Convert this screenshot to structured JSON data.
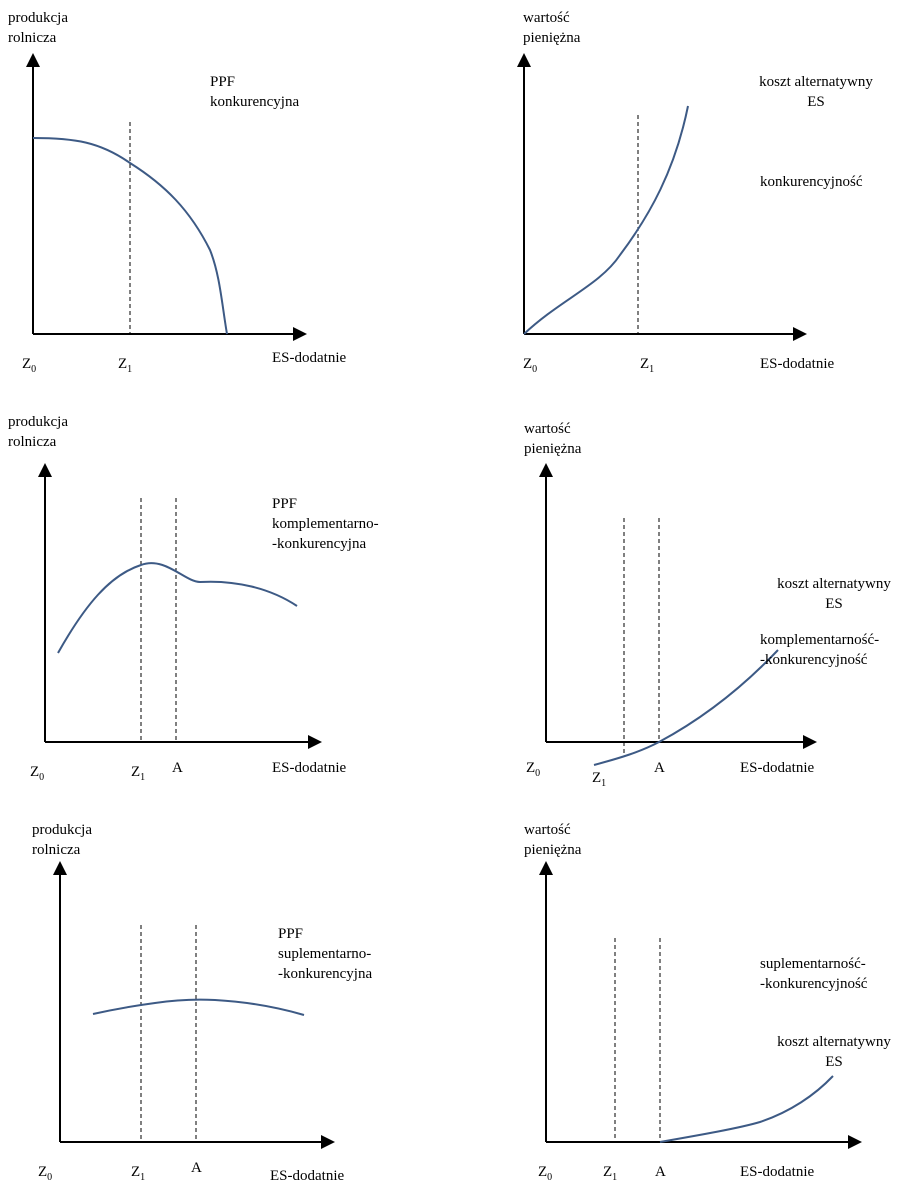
{
  "colors": {
    "curve": "#3d5a85",
    "axis": "#000000"
  },
  "panels": [
    {
      "id": "p1",
      "ylabel1": "produkcja",
      "ylabel2": "rolnicza",
      "xlabel": "ES-dodatnie",
      "label1": "PPF",
      "label2": "konkurencyjna",
      "label3": "",
      "tick_z0": "Z",
      "tick_z0_sub": "0",
      "tick_z1": "Z",
      "tick_z1_sub": "1",
      "tick_a": ""
    },
    {
      "id": "p2",
      "ylabel1": "wartość",
      "ylabel2": "pieniężna",
      "xlabel": "ES-dodatnie",
      "label1": "koszt alternatywny",
      "label2": "ES",
      "label3": "konkurencyjność",
      "label4": "",
      "tick_z0": "Z",
      "tick_z0_sub": "0",
      "tick_z1": "Z",
      "tick_z1_sub": "1",
      "tick_a": ""
    },
    {
      "id": "p3",
      "ylabel1": "produkcja",
      "ylabel2": "rolnicza",
      "xlabel": "ES-dodatnie",
      "label1": "PPF",
      "label2": "komplementarno-",
      "label3": "-konkurencyjna",
      "tick_z0": "Z",
      "tick_z0_sub": "0",
      "tick_z1": "Z",
      "tick_z1_sub": "1",
      "tick_a": "A"
    },
    {
      "id": "p4",
      "ylabel1": "wartość",
      "ylabel2": "pieniężna",
      "xlabel": "ES-dodatnie",
      "label1": "koszt alternatywny",
      "label2": "ES",
      "label3": "komplementarność-",
      "label4": "-konkurencyjność",
      "tick_z0": "Z",
      "tick_z0_sub": "0",
      "tick_z1": "Z",
      "tick_z1_sub": "1",
      "tick_a": "A"
    },
    {
      "id": "p5",
      "ylabel1": "produkcja",
      "ylabel2": "rolnicza",
      "xlabel": "ES-dodatnie",
      "label1": "PPF",
      "label2": "suplementarno-",
      "label3": "-konkurencyjna",
      "tick_z0": "Z",
      "tick_z0_sub": "0",
      "tick_z1": "Z",
      "tick_z1_sub": "1",
      "tick_a": "A"
    },
    {
      "id": "p6",
      "ylabel1": "wartość",
      "ylabel2": "pieniężna",
      "xlabel": "ES-dodatnie",
      "label1": "suplementarność-",
      "label2": "-konkurencyjność",
      "label3": "koszt alternatywny",
      "label4": "ES",
      "tick_z0": "Z",
      "tick_z0_sub": "0",
      "tick_z1": "Z",
      "tick_z1_sub": "1",
      "tick_a": "A"
    }
  ]
}
